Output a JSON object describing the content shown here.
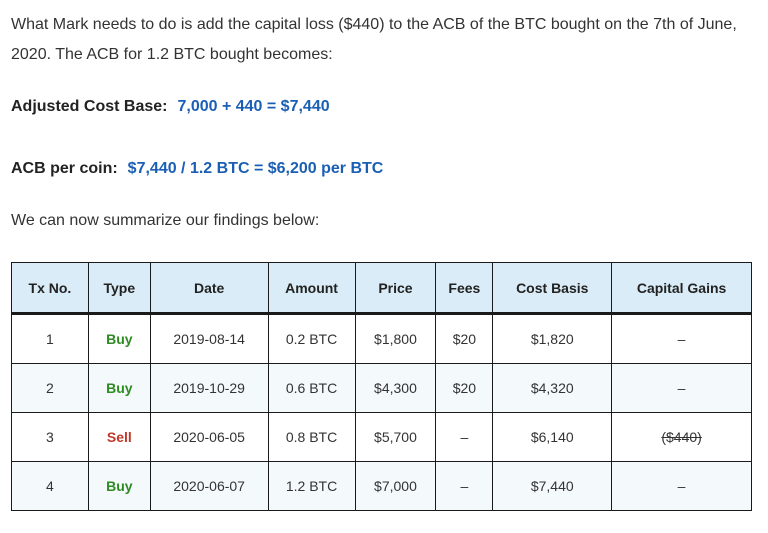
{
  "intro": "What Mark needs to do is add the capital loss ($440) to the ACB of the BTC bought on the 7th of June, 2020. The ACB for 1.2 BTC bought becomes:",
  "acb": {
    "label": "Adjusted Cost Base:",
    "value": "7,000 + 440 = $7,440"
  },
  "per_coin": {
    "label": "ACB per coin:",
    "value": "$7,440 / 1.2 BTC = $6,200 per BTC"
  },
  "summary": "We can now summarize our findings below:",
  "colors": {
    "buy": "#2e8b22",
    "sell": "#c0392b",
    "formula_value": "#1a5fb4",
    "header_bg": "#d9ecf7"
  },
  "table": {
    "headers": [
      "Tx No.",
      "Type",
      "Date",
      "Amount",
      "Price",
      "Fees",
      "Cost Basis",
      "Capital Gains"
    ],
    "rows": [
      [
        "1",
        "Buy",
        "2019-08-14",
        "0.2 BTC",
        "$1,800",
        "$20",
        "$1,820",
        "–"
      ],
      [
        "2",
        "Buy",
        "2019-10-29",
        "0.6 BTC",
        "$4,300",
        "$20",
        "$4,320",
        "–"
      ],
      [
        "3",
        "Sell",
        "2020-06-05",
        "0.8 BTC",
        "$5,700",
        "–",
        "$6,140",
        "($440)"
      ],
      [
        "4",
        "Buy",
        "2020-06-07",
        "1.2 BTC",
        "$7,000",
        "–",
        "$7,440",
        "–"
      ]
    ]
  }
}
